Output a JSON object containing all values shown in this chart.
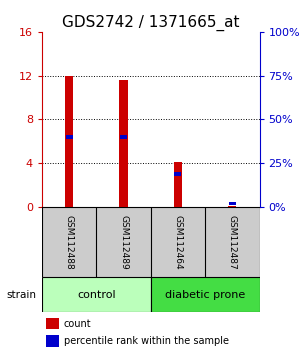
{
  "title": "GDS2742 / 1371665_at",
  "samples": [
    "GSM112488",
    "GSM112489",
    "GSM112464",
    "GSM112487"
  ],
  "counts": [
    12.0,
    11.6,
    4.1,
    0.07
  ],
  "percentiles": [
    40,
    40,
    19,
    2
  ],
  "ylim_left": [
    0,
    16
  ],
  "ylim_right": [
    0,
    100
  ],
  "yticks_left": [
    0,
    4,
    8,
    12,
    16
  ],
  "yticks_right": [
    0,
    25,
    50,
    75,
    100
  ],
  "ytick_labels_left": [
    "0",
    "4",
    "8",
    "12",
    "16"
  ],
  "ytick_labels_right": [
    "0%",
    "25%",
    "50%",
    "75%",
    "100%"
  ],
  "bar_color": "#cc0000",
  "percentile_color": "#0000cc",
  "groups": [
    {
      "label": "control",
      "indices": [
        0,
        1
      ],
      "color": "#bbffbb"
    },
    {
      "label": "diabetic prone",
      "indices": [
        2,
        3
      ],
      "color": "#44dd44"
    }
  ],
  "strain_label": "strain",
  "legend_count_label": "count",
  "legend_percentile_label": "percentile rank within the sample",
  "bg_color": "#ffffff",
  "sample_box_color": "#cccccc",
  "title_fontsize": 11,
  "tick_fontsize": 8,
  "bar_width": 0.15
}
